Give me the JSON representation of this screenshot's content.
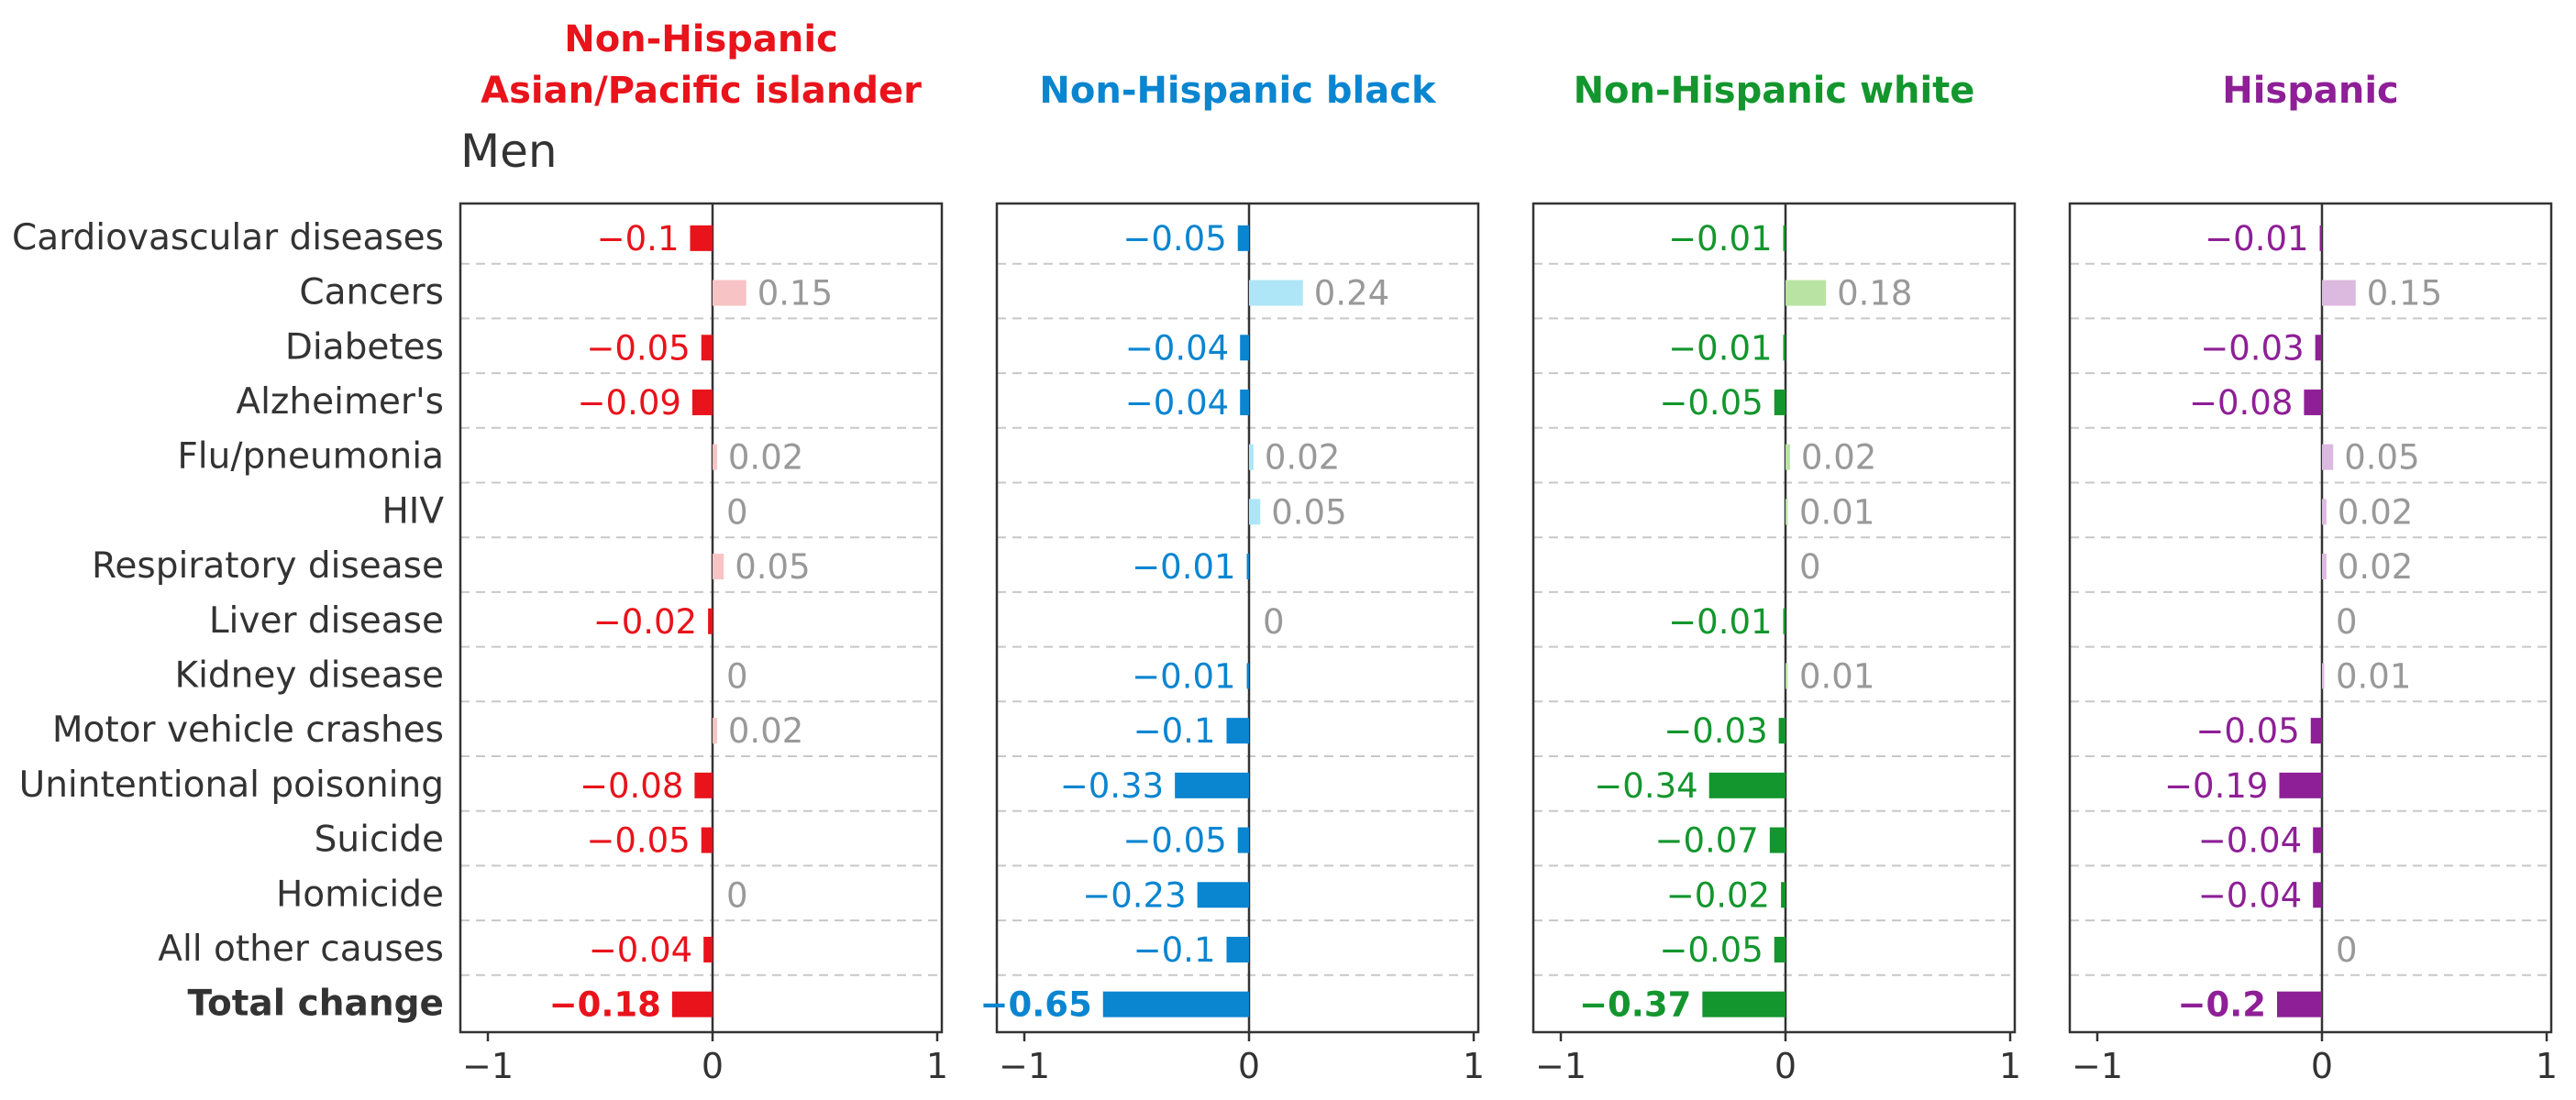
{
  "row_labels": [
    "Cardiovascular diseases",
    "Cancers",
    "Diabetes",
    "Alzheimer's",
    "Flu/pneumonia",
    "HIV",
    "Respiratory disease",
    "Liver disease",
    "Kidney disease",
    "Motor vehicle crashes",
    "Unintentional poisoning",
    "Suicide",
    "Homicide",
    "All other causes",
    "Total change"
  ],
  "total_label": "Total change",
  "subtitle": "Men",
  "chart_data": {
    "type": "bar",
    "orientation": "horizontal",
    "xlim": [
      -1,
      1
    ],
    "xticks": [
      "−1",
      "0",
      "1"
    ],
    "grid": "dashed horizontal row separators",
    "categories": [
      "Cardiovascular diseases",
      "Cancers",
      "Diabetes",
      "Alzheimer's",
      "Flu/pneumonia",
      "HIV",
      "Respiratory disease",
      "Liver disease",
      "Kidney disease",
      "Motor vehicle crashes",
      "Unintentional poisoning",
      "Suicide",
      "Homicide",
      "All other causes",
      "Total change"
    ],
    "series": [
      {
        "name": "Non-Hispanic Asian/Pacific islander",
        "title_lines": [
          "Non-Hispanic",
          "Asian/Pacific islander"
        ],
        "color": "#e8131b",
        "light_color": "#f8c3c5",
        "muted_label_color": "#999999",
        "values": [
          -0.1,
          0.15,
          -0.05,
          -0.09,
          0.02,
          0,
          0.05,
          -0.02,
          0,
          0.02,
          -0.08,
          -0.05,
          0,
          -0.04,
          -0.18
        ],
        "labels": [
          "−0.1",
          "0.15",
          "−0.05",
          "−0.09",
          "0.02",
          "0",
          "0.05",
          "−0.02",
          "0",
          "0.02",
          "−0.08",
          "−0.05",
          "0",
          "−0.04",
          "−0.18"
        ]
      },
      {
        "name": "Non-Hispanic black",
        "title_lines": [
          "Non-Hispanic black"
        ],
        "color": "#0a85d0",
        "light_color": "#aee6f7",
        "muted_label_color": "#999999",
        "values": [
          -0.05,
          0.24,
          -0.04,
          -0.04,
          0.02,
          0.05,
          -0.01,
          0,
          -0.01,
          -0.1,
          -0.33,
          -0.05,
          -0.23,
          -0.1,
          -0.65
        ],
        "labels": [
          "−0.05",
          "0.24",
          "−0.04",
          "−0.04",
          "0.02",
          "0.05",
          "−0.01",
          "0",
          "−0.01",
          "−0.1",
          "−0.33",
          "−0.05",
          "−0.23",
          "−0.1",
          "−0.65"
        ]
      },
      {
        "name": "Non-Hispanic white",
        "title_lines": [
          "Non-Hispanic white"
        ],
        "color": "#13962d",
        "light_color": "#b9e3a2",
        "muted_label_color": "#999999",
        "values": [
          -0.01,
          0.18,
          -0.01,
          -0.05,
          0.02,
          0.01,
          0,
          -0.01,
          0.01,
          -0.03,
          -0.34,
          -0.07,
          -0.02,
          -0.05,
          -0.37
        ],
        "labels": [
          "−0.01",
          "0.18",
          "−0.01",
          "−0.05",
          "0.02",
          "0.01",
          "0",
          "−0.01",
          "0.01",
          "−0.03",
          "−0.34",
          "−0.07",
          "−0.02",
          "−0.05",
          "−0.37"
        ]
      },
      {
        "name": "Hispanic",
        "title_lines": [
          "Hispanic"
        ],
        "color": "#8e1f96",
        "light_color": "#dcb9df",
        "muted_label_color": "#999999",
        "values": [
          -0.01,
          0.15,
          -0.03,
          -0.08,
          0.05,
          0.02,
          0.02,
          0,
          0.01,
          -0.05,
          -0.19,
          -0.04,
          -0.04,
          0,
          -0.2
        ],
        "labels": [
          "−0.01",
          "0.15",
          "−0.03",
          "−0.08",
          "0.05",
          "0.02",
          "0.02",
          "0",
          "0.01",
          "−0.05",
          "−0.19",
          "−0.04",
          "−0.04",
          "0",
          "−0.2"
        ]
      }
    ]
  }
}
